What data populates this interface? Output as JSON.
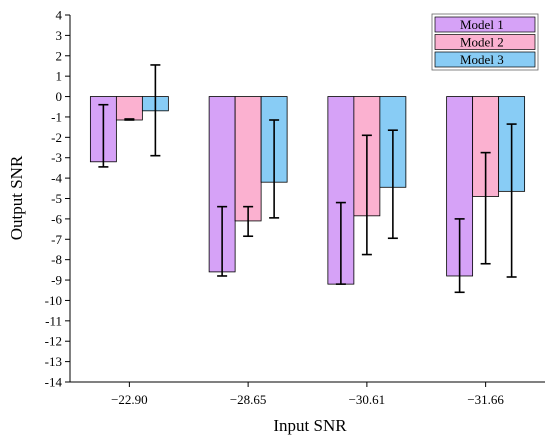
{
  "chart_data": {
    "type": "bar",
    "xlabel": "Input SNR",
    "ylabel": "Output SNR",
    "categories": [
      "−22.90",
      "−28.65",
      "−30.61",
      "−31.66"
    ],
    "ylim": [
      -14,
      4
    ],
    "yticks": [
      4,
      3,
      2,
      1,
      0,
      -1,
      -2,
      -3,
      -4,
      -5,
      -6,
      -7,
      -8,
      -9,
      -10,
      -11,
      -12,
      -13,
      -14
    ],
    "grid": false,
    "legend_position": "top-right",
    "series": [
      {
        "name": "Model 1",
        "color": "#d6a2f7",
        "values": [
          -3.2,
          -8.6,
          -9.2,
          -8.8
        ],
        "err_low": [
          -3.45,
          -8.8,
          -9.2,
          -9.6
        ],
        "err_high": [
          -0.4,
          -5.4,
          -5.2,
          -6.0
        ]
      },
      {
        "name": "Model 2",
        "color": "#fbb1d0",
        "values": [
          -1.15,
          -6.1,
          -5.85,
          -4.9
        ],
        "err_low": [
          -1.15,
          -6.85,
          -7.75,
          -8.2
        ],
        "err_high": [
          -1.1,
          -5.4,
          -1.9,
          -2.75
        ]
      },
      {
        "name": "Model 3",
        "color": "#88ccf5",
        "values": [
          -0.7,
          -4.2,
          -4.45,
          -4.65
        ],
        "err_low": [
          -2.9,
          -5.95,
          -6.95,
          -8.85
        ],
        "err_high": [
          1.55,
          -1.15,
          -1.65,
          -1.35
        ]
      }
    ]
  }
}
